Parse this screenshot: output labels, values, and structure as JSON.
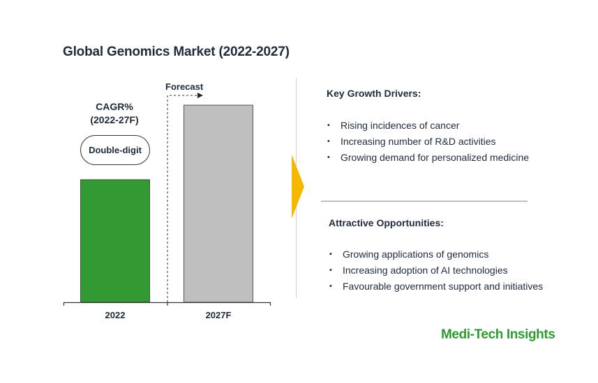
{
  "chart_data": {
    "type": "bar",
    "title": "Global Genomics Market (2022-2027)",
    "categories": [
      "2022",
      "2027F"
    ],
    "values": [
      176,
      283
    ],
    "value_units": "relative bar height (no value axis printed)",
    "colors": [
      "#339933",
      "#bfbfbf"
    ],
    "forecast_label": "Forecast",
    "forecast_from_category": "2027F",
    "cagr_label_line1": "CAGR%",
    "cagr_label_line2": "(2022-27F)",
    "cagr_value": "Double-digit",
    "ylim": [
      0,
      300
    ],
    "grid": false,
    "legend": "none"
  },
  "panel": {
    "drivers_title": "Key Growth Drivers:",
    "drivers": [
      "Rising incidences of cancer",
      "Increasing number of R&D activities",
      "Growing demand for personalized medicine"
    ],
    "opportunities_title": "Attractive Opportunities:",
    "opportunities": [
      "Growing applications of genomics",
      "Increasing adoption of AI technologies",
      "Favourable government support and initiatives"
    ],
    "arrow_color": "#f5b800",
    "divider_color": "#bfbfbf"
  },
  "brand": {
    "logo_text": "Medi-Tech Insights",
    "logo_color": "#2f9a32"
  }
}
